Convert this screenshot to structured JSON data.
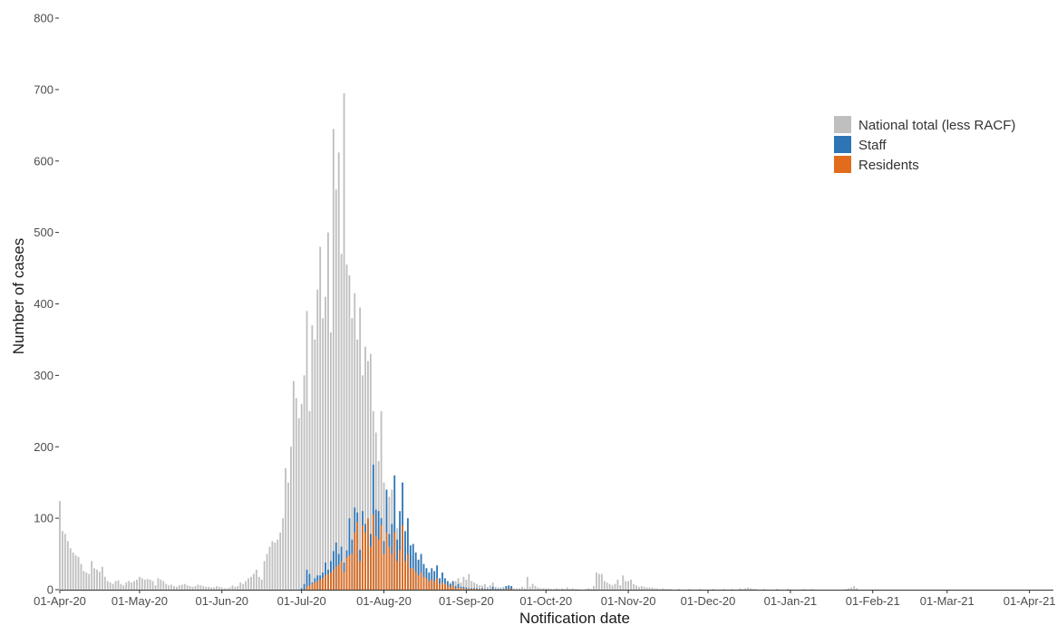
{
  "chart_data": {
    "type": "bar",
    "stacked": true,
    "xlabel": "Notification date",
    "ylabel": "Number of cases",
    "ylim": [
      0,
      800
    ],
    "yticks": [
      0,
      100,
      200,
      300,
      400,
      500,
      600,
      700,
      800
    ],
    "x_start": "2020-04-01",
    "x_end": "2021-04-10",
    "xtick_labels": [
      "01-Apr-20",
      "01-May-20",
      "01-Jun-20",
      "01-Jul-20",
      "01-Aug-20",
      "01-Sep-20",
      "01-Oct-20",
      "01-Nov-20",
      "01-Dec-20",
      "01-Jan-21",
      "01-Feb-21",
      "01-Mar-21",
      "01-Apr-21"
    ],
    "xtick_dates": [
      "2020-04-01",
      "2020-05-01",
      "2020-06-01",
      "2020-07-01",
      "2020-08-01",
      "2020-09-01",
      "2020-10-01",
      "2020-11-01",
      "2020-12-01",
      "2021-01-01",
      "2021-02-01",
      "2021-03-01",
      "2021-04-01"
    ],
    "legend_position": "top-right",
    "grid": false,
    "series": [
      {
        "name": "National total (less RACF)",
        "color": "#bfbfbf",
        "start_date": "2020-04-01",
        "values": [
          124,
          82,
          78,
          68,
          58,
          52,
          48,
          46,
          36,
          26,
          24,
          22,
          40,
          30,
          28,
          25,
          32,
          18,
          12,
          10,
          8,
          12,
          13,
          8,
          6,
          10,
          12,
          10,
          12,
          14,
          18,
          16,
          14,
          15,
          14,
          12,
          6,
          16,
          14,
          12,
          8,
          6,
          7,
          5,
          4,
          6,
          7,
          8,
          6,
          5,
          4,
          5,
          7,
          6,
          5,
          4,
          4,
          3,
          3,
          5,
          4,
          3,
          2,
          2,
          3,
          6,
          4,
          5,
          10,
          8,
          12,
          16,
          18,
          22,
          28,
          18,
          14,
          40,
          50,
          60,
          68,
          66,
          70,
          80,
          100,
          170,
          150,
          200,
          292,
          268,
          240,
          260,
          300,
          390,
          250,
          370,
          350,
          420,
          480,
          380,
          410,
          500,
          360,
          645,
          560,
          612,
          470,
          695,
          455,
          440,
          380,
          415,
          350,
          395,
          300,
          340,
          320,
          330,
          250,
          220,
          180,
          250,
          150,
          120,
          130,
          140,
          100,
          86,
          90,
          75,
          60,
          50,
          48,
          46,
          44,
          40,
          35,
          25,
          30,
          20,
          15,
          14,
          12,
          12,
          10,
          8,
          8,
          10,
          8,
          12,
          16,
          10,
          18,
          14,
          22,
          12,
          10,
          8,
          6,
          6,
          8,
          4,
          6,
          10,
          4,
          3,
          3,
          4,
          2,
          4,
          3,
          2,
          2,
          2,
          4,
          2,
          18,
          4,
          8,
          5,
          3,
          2,
          2,
          2,
          2,
          1,
          1,
          2,
          1,
          2,
          1,
          3,
          1,
          2,
          1,
          1,
          0,
          0,
          1,
          2,
          1,
          5,
          24,
          22,
          22,
          12,
          10,
          8,
          6,
          8,
          14,
          6,
          20,
          12,
          12,
          14,
          8,
          6,
          4,
          5,
          4,
          3,
          3,
          3,
          2,
          2,
          1,
          2,
          1,
          1,
          1,
          0,
          0,
          1,
          0,
          0,
          0,
          1,
          0,
          0,
          0,
          1,
          0,
          0,
          0,
          0,
          1,
          0,
          0,
          0,
          1,
          0,
          0,
          1,
          0,
          0,
          2,
          1,
          2,
          3,
          2,
          1,
          1,
          0,
          0,
          1,
          0,
          0,
          0,
          0,
          1,
          0,
          0,
          0,
          1,
          0,
          0,
          0,
          0,
          0,
          1,
          0,
          0,
          1,
          0,
          0,
          0,
          0,
          0,
          0,
          0,
          0,
          0,
          0,
          0,
          0,
          1,
          2,
          3,
          5,
          2,
          0
        ]
      },
      {
        "name": "Staff",
        "color": "#2e75b6",
        "start_date": "2020-07-01",
        "values": [
          2,
          8,
          28,
          22,
          10,
          16,
          20,
          20,
          24,
          38,
          28,
          40,
          54,
          66,
          50,
          60,
          38,
          55,
          100,
          70,
          115,
          108,
          56,
          110,
          92,
          96,
          78,
          175,
          112,
          110,
          100,
          68,
          140,
          78,
          92,
          160,
          70,
          110,
          150,
          82,
          100,
          62,
          64,
          52,
          42,
          50,
          36,
          30,
          24,
          30,
          26,
          34,
          16,
          24,
          16,
          12,
          8,
          12,
          5,
          8,
          4,
          4,
          3,
          2,
          2,
          2,
          2,
          1,
          2,
          1,
          1,
          1,
          4,
          1,
          1,
          1,
          1,
          5,
          6,
          5
        ]
      },
      {
        "name": "Residents",
        "color": "#e36c1c",
        "start_date": "2020-07-01",
        "values": [
          0,
          0,
          4,
          6,
          8,
          10,
          12,
          14,
          16,
          20,
          22,
          24,
          28,
          32,
          35,
          40,
          25,
          45,
          48,
          50,
          80,
          95,
          40,
          90,
          80,
          100,
          60,
          105,
          75,
          70,
          90,
          50,
          80,
          60,
          50,
          80,
          40,
          55,
          90,
          40,
          50,
          30,
          30,
          25,
          20,
          24,
          18,
          16,
          12,
          14,
          12,
          16,
          8,
          10,
          8,
          6,
          4,
          6,
          2,
          3,
          2,
          2,
          1,
          1,
          1,
          1,
          1,
          0,
          1,
          0,
          0,
          0,
          1,
          0,
          0,
          0,
          0,
          1,
          1,
          1
        ]
      }
    ]
  }
}
